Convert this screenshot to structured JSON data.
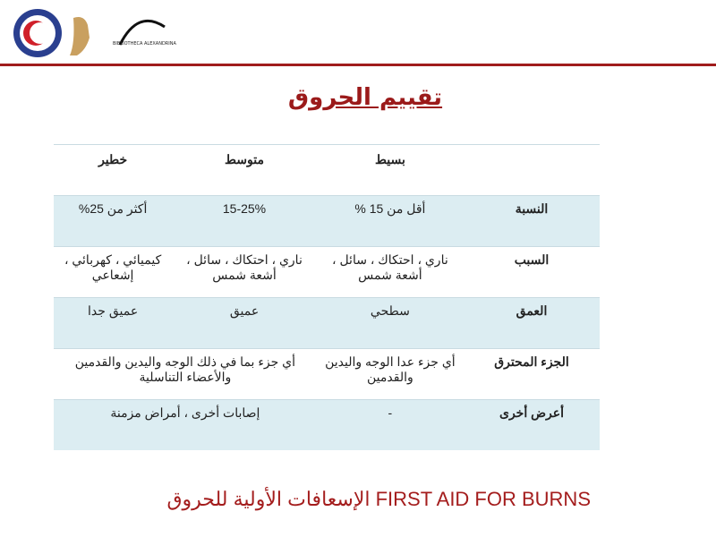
{
  "header": {
    "logo_text": "BIBLIOTHECA ALEXANDRINA مكتبة الإسكندرية",
    "accent": "#a01c1c"
  },
  "title": "تقييم الحروق",
  "table": {
    "columns": [
      "",
      "بسيط",
      "متوسط",
      "خطير"
    ],
    "rows": [
      {
        "label": "النسبة",
        "cells": [
          "أقل من 15 %",
          "15-25%",
          "أكثر من 25%"
        ]
      },
      {
        "label": "السبب",
        "cells": [
          "ناري ، احتكاك ، سائل ، أشعة شمس",
          "ناري ، احتكاك ، سائل ، أشعة شمس",
          "كيميائي ، كهربائي ، إشعاعي"
        ]
      },
      {
        "label": "العمق",
        "cells": [
          "سطحي",
          "عميق",
          "عميق جدا"
        ]
      },
      {
        "label": "الجزء المحترق",
        "cells": [
          "أي جزء عدا الوجه واليدين والقدمين",
          "أي جزء بما في ذلك الوجه واليدين والقدمين والأعضاء التناسلية"
        ]
      },
      {
        "label": "أعرض أخرى",
        "cells": [
          "-",
          "إصابات أخرى ، أمراض مزمنة"
        ]
      }
    ]
  },
  "footer": "الإسعافات الأولية للحروق FIRST AID FOR BURNS"
}
